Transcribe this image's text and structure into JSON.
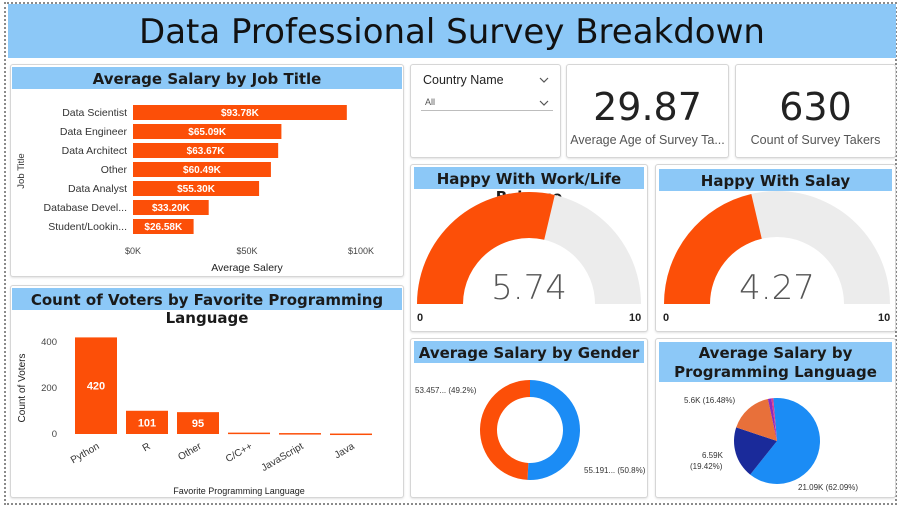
{
  "header": {
    "title": "Data Professional Survey Breakdown"
  },
  "colors": {
    "accent": "#fc4f08",
    "header_blue": "#8cc8f7",
    "gauge_track": "#ececec",
    "gender_blue": "#1b8cf5",
    "navy": "#1a2a9a"
  },
  "filter": {
    "title": "Country Name",
    "value": "All",
    "icon": "chevron-down-icon"
  },
  "kpis": {
    "avg_age": {
      "value": "29.87",
      "label": "Average Age of Survey Ta..."
    },
    "count": {
      "value": "630",
      "label": "Count of Survey Takers"
    }
  },
  "salary_by_job": {
    "title": "Average Salary by Job Title",
    "ylabel": "Job Title",
    "xlabel": "Average Salery",
    "ticks": [
      "$0K",
      "$50K",
      "$100K"
    ]
  },
  "languages": {
    "title": "Count of Voters by Favorite Programming Language",
    "ylabel": "Count of Voters",
    "xlabel": "Favorite Programming Language",
    "ticks": [
      "0",
      "200",
      "400"
    ]
  },
  "gauge_work": {
    "title": "Happy With Work/Life Balance",
    "value_label": "5.74",
    "min": "0",
    "max": "10"
  },
  "gauge_salary": {
    "title": "Happy With Salay",
    "value_label": "4.27",
    "min": "0",
    "max": "10"
  },
  "gender": {
    "title": "Average Salary by Gender"
  },
  "prog_lang_salary": {
    "title_line1": "Average Salary by",
    "title_line2": "Programming Language"
  },
  "chart_data": [
    {
      "type": "bar",
      "orientation": "horizontal",
      "title": "Average Salary by Job Title",
      "xlabel": "Average Salery",
      "ylabel": "Job Title",
      "categories": [
        "Data Scientist",
        "Data Engineer",
        "Data Architect",
        "Other",
        "Data Analyst",
        "Database Devel...",
        "Student/Lookin..."
      ],
      "values": [
        93.78,
        65.09,
        63.67,
        60.49,
        55.3,
        33.2,
        26.58
      ],
      "labels": [
        "$93.78K",
        "$65.09K",
        "$63.67K",
        "$60.49K",
        "$55.30K",
        "$33.20K",
        "$26.58K"
      ],
      "xlim": [
        0,
        110
      ],
      "unit": "$K"
    },
    {
      "type": "bar",
      "title": "Count of Voters by Favorite Programming Language",
      "xlabel": "Favorite Programming Language",
      "ylabel": "Count of Voters",
      "categories": [
        "Python",
        "R",
        "Other",
        "C/C++",
        "JavaScript",
        "Java"
      ],
      "values": [
        420,
        101,
        95,
        6,
        4,
        2
      ],
      "labels": [
        "420",
        "101",
        "95",
        "",
        "",
        ""
      ],
      "ylim": [
        0,
        450
      ]
    },
    {
      "type": "gauge",
      "title": "Happy With Work/Life Balance",
      "value": 5.74,
      "min": 0,
      "max": 10
    },
    {
      "type": "gauge",
      "title": "Happy With Salay",
      "value": 4.27,
      "min": 0,
      "max": 10
    },
    {
      "type": "pie",
      "donut": true,
      "title": "Average Salary by Gender",
      "slices": [
        {
          "value": 55.191,
          "percent": 50.8,
          "label": "55.191... (50.8%)",
          "color": "#1b8cf5"
        },
        {
          "value": 53.457,
          "percent": 49.2,
          "label": "53.457... (49.2%)",
          "color": "#fc4f08"
        }
      ]
    },
    {
      "type": "pie",
      "title": "Average Salary by Programming Language",
      "slices": [
        {
          "value": 21.09,
          "percent": 62.09,
          "label": "21.09K (62.09%)",
          "color": "#1b8cf5"
        },
        {
          "value": 6.59,
          "percent": 19.42,
          "label": "6.59K (19.42%)",
          "color": "#1a2a9a"
        },
        {
          "value": 5.6,
          "percent": 16.48,
          "label": "5.6K (16.48%)",
          "color": "#e8703a"
        },
        {
          "value": 0.45,
          "percent": 1.33,
          "label": "",
          "color": "#8a2bbf"
        },
        {
          "value": 0.23,
          "percent": 0.68,
          "label": "",
          "color": "#e03c8c"
        }
      ]
    }
  ]
}
